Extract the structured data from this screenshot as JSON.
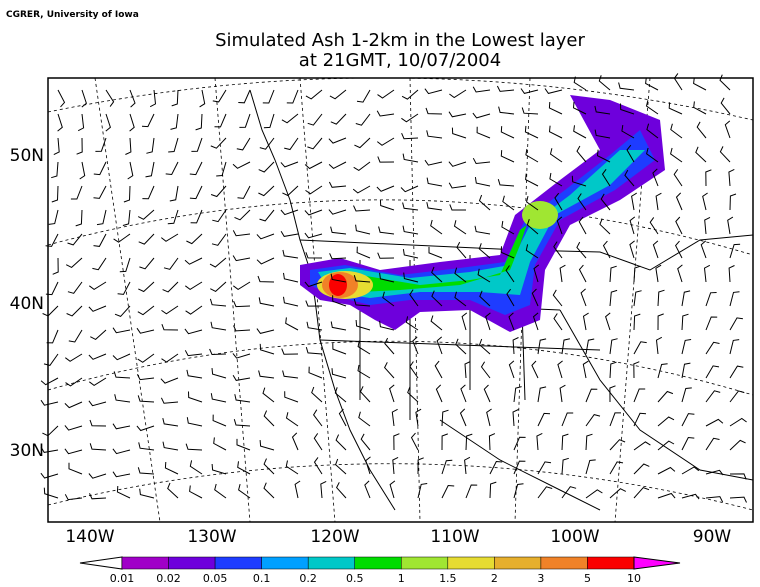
{
  "header": {
    "credit": "CGRER, University of Iowa",
    "title_lines": [
      "Simulated Ash 1-2km in the Lowest layer",
      "at 21GMT, 10/07/2004"
    ]
  },
  "map": {
    "lat_labels": [
      "50N",
      "40N",
      "30N"
    ],
    "lon_labels": [
      "140W",
      "130W",
      "120W",
      "110W",
      "100W",
      "90W"
    ]
  },
  "colorbar": {
    "labels": [
      "0.01",
      "0.02",
      "0.05",
      "0.1",
      "0.2",
      "0.5",
      "1",
      "1.5",
      "2",
      "3",
      "5",
      "10"
    ],
    "below_color": "#ffffff",
    "colors": [
      "#a000c8",
      "#6e00dc",
      "#1e3cff",
      "#00a0ff",
      "#00c8c8",
      "#00dc00",
      "#a0e632",
      "#e6dc32",
      "#e6af2d",
      "#f08228",
      "#fa0000"
    ],
    "above_color": "#ff00ff"
  }
}
